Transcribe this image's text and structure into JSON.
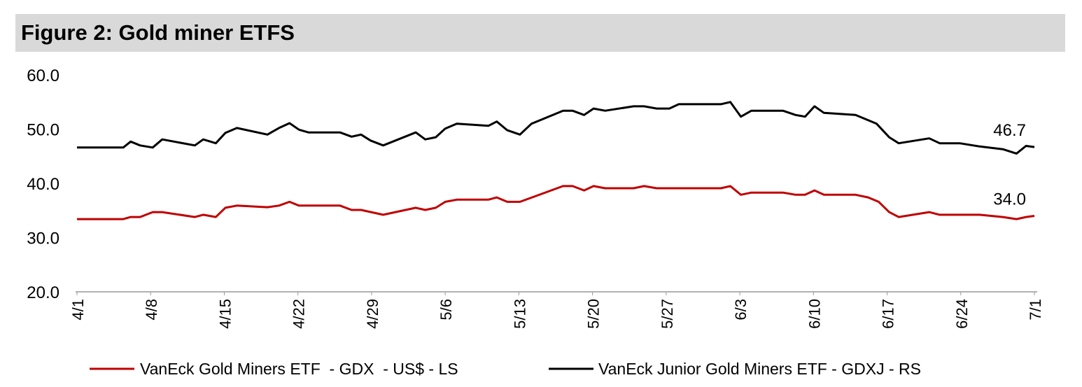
{
  "chart_data": {
    "type": "line",
    "title": "Figure 2: Gold miner ETFS",
    "xlabel": "",
    "ylabel": "",
    "ylim": [
      20,
      60
    ],
    "yticks": [
      "20.0",
      "30.0",
      "40.0",
      "50.0",
      "60.0"
    ],
    "xticks": [
      {
        "day": 0,
        "label": "4/1"
      },
      {
        "day": 7,
        "label": "4/8"
      },
      {
        "day": 14,
        "label": "4/15"
      },
      {
        "day": 21,
        "label": "4/22"
      },
      {
        "day": 28,
        "label": "4/29"
      },
      {
        "day": 35,
        "label": "5/6"
      },
      {
        "day": 42,
        "label": "5/13"
      },
      {
        "day": 49,
        "label": "5/20"
      },
      {
        "day": 56,
        "label": "5/27"
      },
      {
        "day": 63,
        "label": "6/3"
      },
      {
        "day": 70,
        "label": "6/10"
      },
      {
        "day": 77,
        "label": "6/17"
      },
      {
        "day": 84,
        "label": "6/24"
      },
      {
        "day": 91,
        "label": "7/1"
      }
    ],
    "xlim": [
      0,
      91
    ],
    "grid": false,
    "legend_position": "bottom",
    "series": [
      {
        "name": "VanEck Gold Miners ETF  - GDX  - US$ - LS",
        "color": "#c00000",
        "end_label": "34.0",
        "points": [
          [
            0,
            33.4
          ],
          [
            4.4,
            33.4
          ],
          [
            5.1,
            33.8
          ],
          [
            6,
            33.8
          ],
          [
            7.2,
            34.7
          ],
          [
            8.1,
            34.7
          ],
          [
            11.2,
            33.8
          ],
          [
            12,
            34.2
          ],
          [
            13.2,
            33.8
          ],
          [
            14.1,
            35.5
          ],
          [
            15.2,
            35.9
          ],
          [
            18.1,
            35.6
          ],
          [
            19.2,
            35.9
          ],
          [
            20.2,
            36.6
          ],
          [
            21.1,
            35.9
          ],
          [
            25,
            35.9
          ],
          [
            26.1,
            35.1
          ],
          [
            27,
            35.1
          ],
          [
            29.1,
            34.2
          ],
          [
            32.2,
            35.5
          ],
          [
            33.1,
            35.1
          ],
          [
            34.1,
            35.5
          ],
          [
            35,
            36.6
          ],
          [
            36.1,
            37.0
          ],
          [
            39.1,
            37.0
          ],
          [
            39.9,
            37.4
          ],
          [
            40.9,
            36.6
          ],
          [
            42.1,
            36.6
          ],
          [
            46.2,
            39.5
          ],
          [
            47.1,
            39.5
          ],
          [
            48.2,
            38.7
          ],
          [
            49.1,
            39.5
          ],
          [
            50.2,
            39.1
          ],
          [
            52.9,
            39.1
          ],
          [
            53.9,
            39.5
          ],
          [
            55.1,
            39.1
          ],
          [
            61.2,
            39.1
          ],
          [
            62.1,
            39.5
          ],
          [
            63.1,
            37.9
          ],
          [
            64.1,
            38.3
          ],
          [
            67.1,
            38.3
          ],
          [
            68.3,
            37.9
          ],
          [
            69.2,
            37.9
          ],
          [
            70.1,
            38.7
          ],
          [
            71,
            37.9
          ],
          [
            74,
            37.9
          ],
          [
            75.2,
            37.4
          ],
          [
            76.2,
            36.6
          ],
          [
            77.2,
            34.7
          ],
          [
            78.1,
            33.8
          ],
          [
            81,
            34.7
          ],
          [
            82,
            34.2
          ],
          [
            85.8,
            34.2
          ],
          [
            88,
            33.8
          ],
          [
            89.3,
            33.4
          ],
          [
            90.2,
            33.8
          ],
          [
            91,
            34.0
          ]
        ]
      },
      {
        "name": "VanEck Junior Gold Miners ETF - GDXJ - RS",
        "color": "#000000",
        "end_label": "46.7",
        "points": [
          [
            0,
            46.6
          ],
          [
            4.4,
            46.6
          ],
          [
            5.1,
            47.7
          ],
          [
            6,
            47.0
          ],
          [
            7.2,
            46.6
          ],
          [
            8.1,
            48.1
          ],
          [
            11.2,
            47.0
          ],
          [
            12,
            48.1
          ],
          [
            13.2,
            47.4
          ],
          [
            14.1,
            49.3
          ],
          [
            15.2,
            50.2
          ],
          [
            18.1,
            49.0
          ],
          [
            19.2,
            50.2
          ],
          [
            20.2,
            51.1
          ],
          [
            21.1,
            49.9
          ],
          [
            22,
            49.4
          ],
          [
            25,
            49.4
          ],
          [
            26.1,
            48.6
          ],
          [
            27,
            49.0
          ],
          [
            27.9,
            47.9
          ],
          [
            29.1,
            47.0
          ],
          [
            32.2,
            49.4
          ],
          [
            33.1,
            48.1
          ],
          [
            34.1,
            48.5
          ],
          [
            35,
            50.1
          ],
          [
            36.1,
            51.0
          ],
          [
            39.1,
            50.6
          ],
          [
            39.9,
            51.4
          ],
          [
            40.9,
            49.8
          ],
          [
            42.1,
            49.0
          ],
          [
            43.2,
            51.0
          ],
          [
            46.2,
            53.4
          ],
          [
            47.1,
            53.4
          ],
          [
            48.2,
            52.6
          ],
          [
            49.1,
            53.8
          ],
          [
            50.2,
            53.4
          ],
          [
            52.9,
            54.2
          ],
          [
            53.9,
            54.2
          ],
          [
            55.1,
            53.8
          ],
          [
            56.3,
            53.8
          ],
          [
            57.2,
            54.6
          ],
          [
            61.2,
            54.6
          ],
          [
            62.1,
            55.0
          ],
          [
            63.1,
            52.3
          ],
          [
            64.1,
            53.4
          ],
          [
            67.1,
            53.4
          ],
          [
            68.3,
            52.6
          ],
          [
            69.2,
            52.3
          ],
          [
            70.1,
            54.2
          ],
          [
            71,
            53.0
          ],
          [
            74,
            52.6
          ],
          [
            76,
            51.0
          ],
          [
            77.2,
            48.5
          ],
          [
            78.1,
            47.4
          ],
          [
            81,
            48.3
          ],
          [
            82,
            47.4
          ],
          [
            83.9,
            47.4
          ],
          [
            85.8,
            46.8
          ],
          [
            88,
            46.3
          ],
          [
            89.3,
            45.5
          ],
          [
            90.2,
            46.9
          ],
          [
            91,
            46.7
          ]
        ]
      }
    ]
  }
}
